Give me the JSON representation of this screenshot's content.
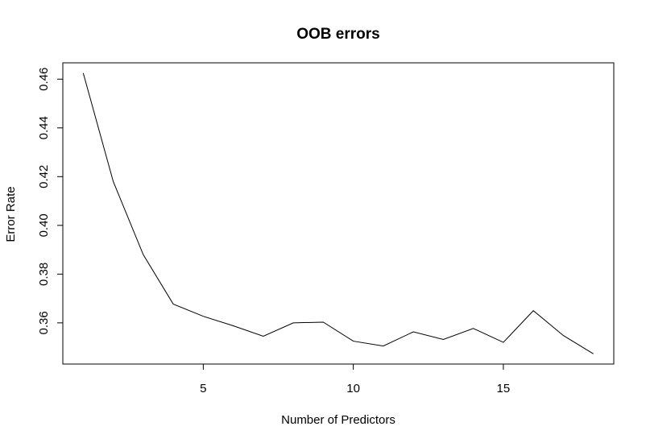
{
  "chart_data": {
    "type": "line",
    "title": "OOB errors",
    "xlabel": "Number of Predictors",
    "ylabel": "Error Rate",
    "x": [
      1,
      2,
      3,
      4,
      5,
      6,
      7,
      8,
      9,
      10,
      11,
      12,
      13,
      14,
      15,
      16,
      17,
      18
    ],
    "series": [
      {
        "values": [
          0.4625,
          0.418,
          0.388,
          0.3677,
          0.3627,
          0.3588,
          0.3545,
          0.36,
          0.3603,
          0.3525,
          0.3505,
          0.3563,
          0.3532,
          0.3577,
          0.352,
          0.365,
          0.3548,
          0.3473
        ]
      }
    ],
    "xlim": [
      0.32,
      18.68
    ],
    "ylim": [
      0.3431,
      0.4667
    ],
    "xticks": [
      5,
      10,
      15
    ],
    "yticks": [
      0.36,
      0.38,
      0.4,
      0.42,
      0.44,
      0.46
    ],
    "xtick_labels": [
      "5",
      "10",
      "15"
    ],
    "ytick_labels": [
      "0.36",
      "0.38",
      "0.40",
      "0.42",
      "0.44",
      "0.46"
    ],
    "grid": false,
    "legend": "none",
    "line_color": "#000000"
  }
}
